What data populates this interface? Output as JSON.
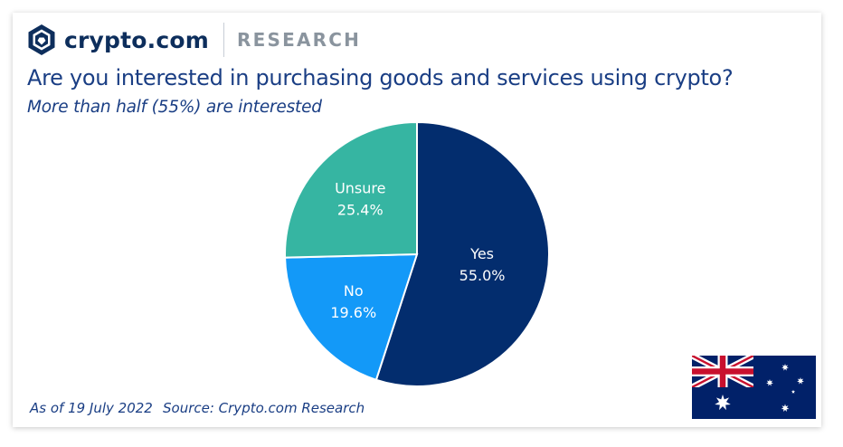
{
  "header": {
    "brand": "crypto.com",
    "section": "RESEARCH"
  },
  "title": "Are you interested in purchasing goods and services using crypto?",
  "subtitle": "More than half (55%) are interested",
  "footer": {
    "date": "As of 19 July 2022",
    "source": "Source: Crypto.com Research"
  },
  "flag": "australia-flag",
  "chart_data": {
    "type": "pie",
    "slices": [
      {
        "label": "Yes",
        "value": 55.0,
        "display": "55.0%",
        "color": "#032d6e"
      },
      {
        "label": "No",
        "value": 19.6,
        "display": "19.6%",
        "color": "#1399f8"
      },
      {
        "label": "Unsure",
        "value": 25.4,
        "display": "25.4%",
        "color": "#36b5a2"
      }
    ],
    "start_angle": "12 o'clock",
    "direction": "clockwise"
  }
}
